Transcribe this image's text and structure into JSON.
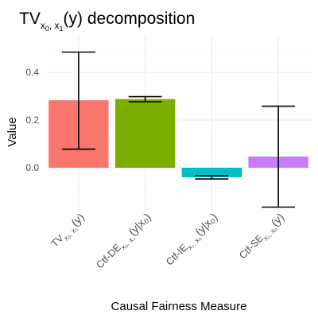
{
  "title": {
    "main": "TV",
    "sub": "x",
    "sub0": "0",
    "sep": ", x",
    "sub1": "1",
    "tail": "(y) decomposition"
  },
  "chart_data": {
    "type": "bar",
    "title": "TVx0, x1(y) decomposition",
    "xlabel": "Causal Fairness Measure",
    "ylabel": "Value",
    "ylim": [
      -0.18,
      0.55
    ],
    "yticks": [
      0.0,
      0.2,
      0.4
    ],
    "ytick_labels": [
      "0.0",
      "0.2",
      "0.4"
    ],
    "grid": true,
    "legend": "none",
    "categories": [
      {
        "main": "TV",
        "sub": "x₀, x₁",
        "tail": "(y)"
      },
      {
        "main": "Ctf-DE",
        "sub": "x₀, x₁",
        "tail": "(y|x₀)"
      },
      {
        "main": "Ctf-IE",
        "sub": "x₁, x₀",
        "tail": "(y|x₀)"
      },
      {
        "main": "Ctf-SE",
        "sub": "x₁, x₀",
        "tail": "(y)"
      }
    ],
    "values": [
      0.283,
      0.288,
      -0.04,
      0.047
    ],
    "err_low": [
      0.078,
      0.277,
      -0.047,
      -0.165
    ],
    "err_high": [
      0.485,
      0.298,
      -0.033,
      0.258
    ],
    "colors": [
      "#F8766D",
      "#7CAE00",
      "#00BFC4",
      "#C77CFF"
    ]
  }
}
